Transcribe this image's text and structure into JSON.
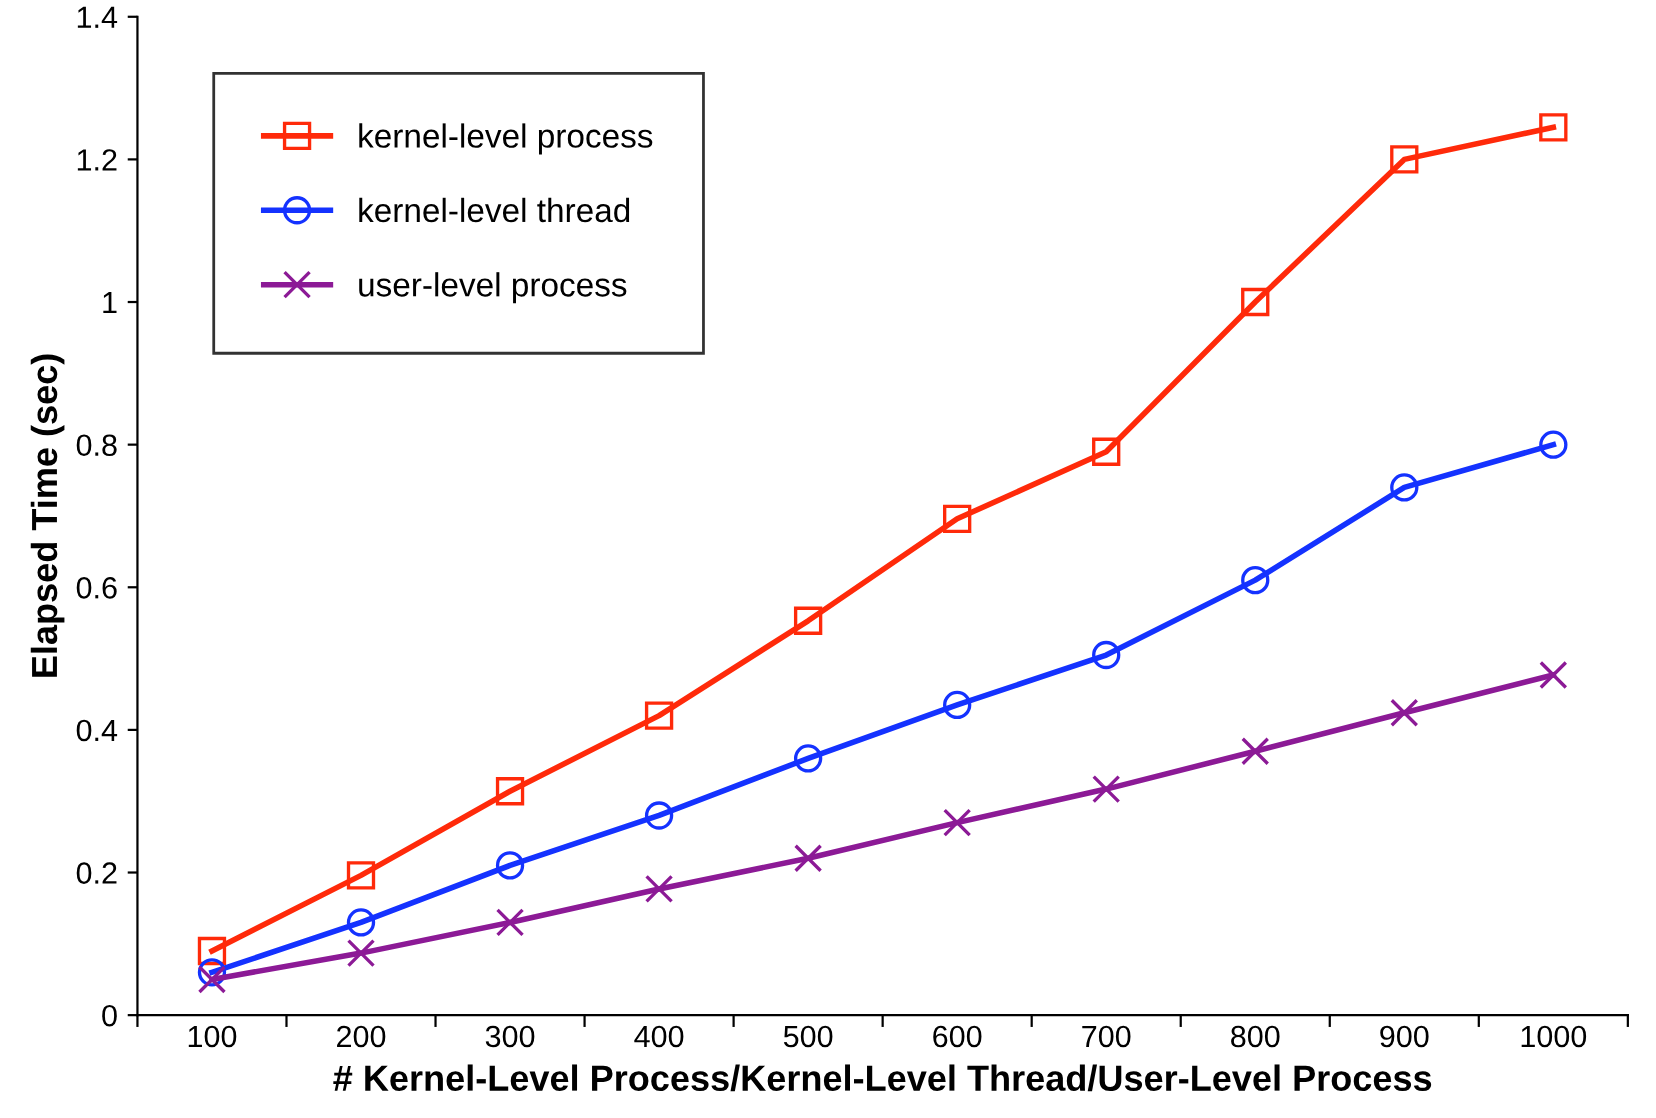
{
  "chart_data": {
    "type": "line",
    "xlabel": "# Kernel-Level Process/Kernel-Level Thread/User-Level Process",
    "ylabel": "Elapsed Time (sec)",
    "categories": [
      "100",
      "200",
      "300",
      "400",
      "500",
      "600",
      "700",
      "800",
      "900",
      "1000"
    ],
    "series": [
      {
        "name": "kernel-level process",
        "color": "#ff2a0a",
        "marker": "square",
        "values": [
          0.09,
          0.196,
          0.314,
          0.42,
          0.553,
          0.696,
          0.79,
          1.0,
          1.2,
          1.245
        ]
      },
      {
        "name": "kernel-level thread",
        "color": "#1432ff",
        "marker": "circle",
        "values": [
          0.06,
          0.13,
          0.21,
          0.28,
          0.36,
          0.435,
          0.505,
          0.61,
          0.74,
          0.8
        ]
      },
      {
        "name": "user-level process",
        "color": "#8c1a96",
        "marker": "cross",
        "values": [
          0.05,
          0.087,
          0.13,
          0.177,
          0.22,
          0.27,
          0.317,
          0.37,
          0.424,
          0.477
        ]
      }
    ],
    "ylim": [
      0,
      1.4
    ],
    "yticks": [
      0,
      0.2,
      0.4,
      0.6,
      0.8,
      1,
      1.2,
      1.4
    ],
    "grid": false,
    "legend": "top left",
    "line_style": "solid"
  }
}
